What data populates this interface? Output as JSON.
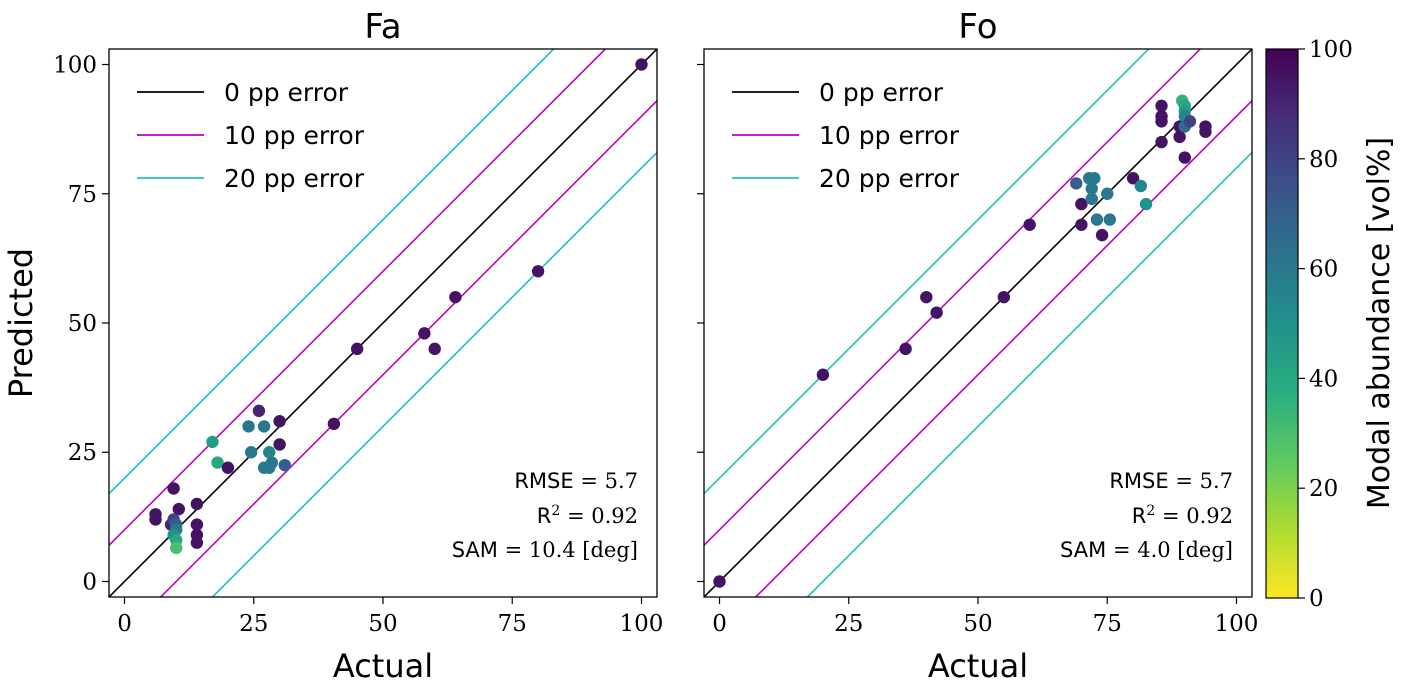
{
  "chart_data": [
    {
      "type": "scatter",
      "title": "Fa",
      "xlabel": "Actual",
      "ylabel": "Predicted",
      "xlim": [
        -3,
        103
      ],
      "ylim": [
        -3,
        103
      ],
      "xticks": [
        "0",
        "25",
        "50",
        "75",
        "100"
      ],
      "yticks": [
        "0",
        "25",
        "50",
        "75",
        "100"
      ],
      "grid": false,
      "legend_position": "top-left",
      "lines": [
        {
          "name": "0 pp error",
          "offset": 0,
          "color": "#000000"
        },
        {
          "name": "10 pp error",
          "offset": 10,
          "color": "#c000c0"
        },
        {
          "name": "20 pp error",
          "offset": 20,
          "color": "#20c0c0"
        }
      ],
      "metrics": [
        {
          "label": "RMSE",
          "value": "5.7"
        },
        {
          "label": "R2",
          "value": "0.92"
        },
        {
          "label": "SAM",
          "value": "10.4 [deg]"
        }
      ],
      "points": [
        {
          "x": 6,
          "y": 12,
          "c": 95
        },
        {
          "x": 6,
          "y": 13,
          "c": 95
        },
        {
          "x": 9.5,
          "y": 18,
          "c": 95
        },
        {
          "x": 10.5,
          "y": 14,
          "c": 95
        },
        {
          "x": 9,
          "y": 11,
          "c": 90
        },
        {
          "x": 9.5,
          "y": 12,
          "c": 80
        },
        {
          "x": 10,
          "y": 11,
          "c": 70
        },
        {
          "x": 10,
          "y": 10,
          "c": 60
        },
        {
          "x": 9.5,
          "y": 9,
          "c": 50
        },
        {
          "x": 10,
          "y": 8,
          "c": 40
        },
        {
          "x": 10,
          "y": 6.5,
          "c": 30
        },
        {
          "x": 14,
          "y": 15,
          "c": 95
        },
        {
          "x": 14,
          "y": 11,
          "c": 95
        },
        {
          "x": 14,
          "y": 9,
          "c": 95
        },
        {
          "x": 14,
          "y": 7.5,
          "c": 95
        },
        {
          "x": 17,
          "y": 27,
          "c": 45
        },
        {
          "x": 18,
          "y": 23,
          "c": 40
        },
        {
          "x": 20,
          "y": 22,
          "c": 95
        },
        {
          "x": 24,
          "y": 30,
          "c": 60
        },
        {
          "x": 24.5,
          "y": 25,
          "c": 60
        },
        {
          "x": 26,
          "y": 33,
          "c": 90
        },
        {
          "x": 27,
          "y": 30,
          "c": 60
        },
        {
          "x": 27,
          "y": 22,
          "c": 60
        },
        {
          "x": 28,
          "y": 22,
          "c": 60
        },
        {
          "x": 28,
          "y": 25,
          "c": 55
        },
        {
          "x": 28.5,
          "y": 23,
          "c": 60
        },
        {
          "x": 30,
          "y": 31,
          "c": 95
        },
        {
          "x": 30,
          "y": 26.5,
          "c": 95
        },
        {
          "x": 31,
          "y": 22.5,
          "c": 70
        },
        {
          "x": 40.5,
          "y": 30.5,
          "c": 95
        },
        {
          "x": 45,
          "y": 45,
          "c": 95
        },
        {
          "x": 58,
          "y": 48,
          "c": 95
        },
        {
          "x": 60,
          "y": 45,
          "c": 95
        },
        {
          "x": 64,
          "y": 55,
          "c": 95
        },
        {
          "x": 80,
          "y": 60,
          "c": 95
        },
        {
          "x": 100,
          "y": 100,
          "c": 95
        }
      ]
    },
    {
      "type": "scatter",
      "title": "Fo",
      "xlabel": "Actual",
      "ylabel": "",
      "xlim": [
        -3,
        103
      ],
      "ylim": [
        -3,
        103
      ],
      "xticks": [
        "0",
        "25",
        "50",
        "75",
        "100"
      ],
      "yticks": [],
      "grid": false,
      "legend_position": "top-left",
      "lines": [
        {
          "name": "0 pp error",
          "offset": 0,
          "color": "#000000"
        },
        {
          "name": "10 pp error",
          "offset": 10,
          "color": "#c000c0"
        },
        {
          "name": "20 pp error",
          "offset": 20,
          "color": "#20c0c0"
        }
      ],
      "metrics": [
        {
          "label": "RMSE",
          "value": "5.7"
        },
        {
          "label": "R2",
          "value": "0.92"
        },
        {
          "label": "SAM",
          "value": "4.0 [deg]"
        }
      ],
      "points": [
        {
          "x": 0,
          "y": 0,
          "c": 95
        },
        {
          "x": 20,
          "y": 40,
          "c": 95
        },
        {
          "x": 36,
          "y": 45,
          "c": 95
        },
        {
          "x": 40,
          "y": 55,
          "c": 95
        },
        {
          "x": 42,
          "y": 52,
          "c": 95
        },
        {
          "x": 55,
          "y": 55,
          "c": 95
        },
        {
          "x": 60,
          "y": 69,
          "c": 95
        },
        {
          "x": 69,
          "y": 77,
          "c": 70
        },
        {
          "x": 70,
          "y": 73,
          "c": 95
        },
        {
          "x": 70,
          "y": 69,
          "c": 95
        },
        {
          "x": 71.5,
          "y": 78,
          "c": 60
        },
        {
          "x": 72,
          "y": 76,
          "c": 60
        },
        {
          "x": 72,
          "y": 74,
          "c": 60
        },
        {
          "x": 72.5,
          "y": 78,
          "c": 60
        },
        {
          "x": 73,
          "y": 70,
          "c": 60
        },
        {
          "x": 74,
          "y": 67,
          "c": 95
        },
        {
          "x": 75,
          "y": 75,
          "c": 60
        },
        {
          "x": 75.5,
          "y": 70,
          "c": 60
        },
        {
          "x": 80,
          "y": 78,
          "c": 95
        },
        {
          "x": 81.5,
          "y": 76.5,
          "c": 55
        },
        {
          "x": 82.5,
          "y": 73,
          "c": 50
        },
        {
          "x": 85.5,
          "y": 92,
          "c": 95
        },
        {
          "x": 85.5,
          "y": 90,
          "c": 95
        },
        {
          "x": 85.5,
          "y": 89,
          "c": 95
        },
        {
          "x": 85.5,
          "y": 85,
          "c": 95
        },
        {
          "x": 89,
          "y": 86,
          "c": 95
        },
        {
          "x": 89,
          "y": 88,
          "c": 95
        },
        {
          "x": 90,
          "y": 82,
          "c": 95
        },
        {
          "x": 89.5,
          "y": 93,
          "c": 35
        },
        {
          "x": 90,
          "y": 92,
          "c": 40
        },
        {
          "x": 90,
          "y": 91,
          "c": 45
        },
        {
          "x": 90,
          "y": 90,
          "c": 55
        },
        {
          "x": 90,
          "y": 88,
          "c": 65
        },
        {
          "x": 91,
          "y": 89,
          "c": 80
        },
        {
          "x": 94,
          "y": 88,
          "c": 95
        },
        {
          "x": 94,
          "y": 87,
          "c": 95
        }
      ]
    }
  ],
  "colorbar": {
    "label": "Modal abundance [vol%]",
    "min": 0,
    "max": 100,
    "ticks": [
      "0",
      "20",
      "40",
      "60",
      "80",
      "100"
    ],
    "colormap": "viridis_r"
  }
}
